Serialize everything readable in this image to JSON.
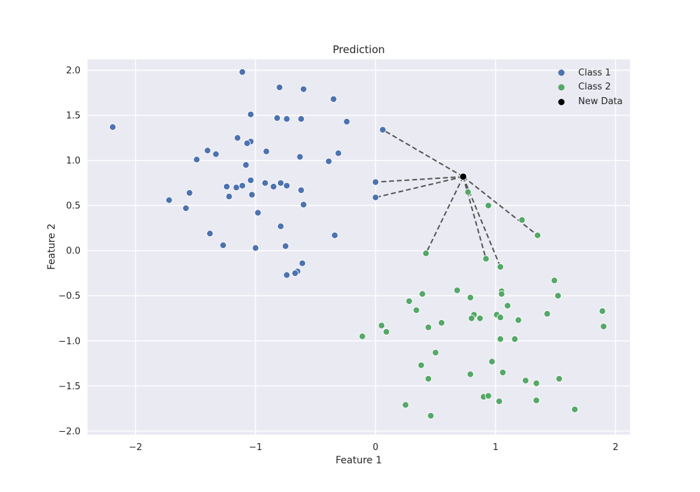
{
  "chart_data": {
    "type": "scatter",
    "title": "Prediction",
    "xlabel": "Feature 1",
    "ylabel": "Feature 2",
    "xlim": [
      -2.4,
      2.12
    ],
    "ylim": [
      -2.04,
      2.12
    ],
    "xticks": [
      -2,
      -1,
      0,
      1,
      2
    ],
    "xtick_labels": [
      "−2",
      "−1",
      "0",
      "1",
      "2"
    ],
    "yticks": [
      -2.0,
      -1.5,
      -1.0,
      -0.5,
      0.0,
      0.5,
      1.0,
      1.5,
      2.0
    ],
    "ytick_labels": [
      "−2.0",
      "−1.5",
      "−1.0",
      "−0.5",
      "0.0",
      "0.5",
      "1.0",
      "1.5",
      "2.0"
    ],
    "grid": true,
    "legend_position": "top-right",
    "colors": {
      "background": "#eaeaf2",
      "grid": "#ffffff",
      "class1": "#4c72b0",
      "class2": "#55a868",
      "new_data": "#000000",
      "neighbor_line": "#555555"
    },
    "series": [
      {
        "name": "Class 1",
        "color": "#4c72b0",
        "points": [
          [
            -1.11,
            1.98
          ],
          [
            -0.8,
            1.81
          ],
          [
            -0.6,
            1.79
          ],
          [
            -0.35,
            1.68
          ],
          [
            -1.04,
            1.51
          ],
          [
            -0.82,
            1.47
          ],
          [
            -0.74,
            1.46
          ],
          [
            -0.62,
            1.46
          ],
          [
            -0.24,
            1.43
          ],
          [
            -2.19,
            1.37
          ],
          [
            -1.15,
            1.25
          ],
          [
            -1.04,
            1.21
          ],
          [
            -1.07,
            1.19
          ],
          [
            -1.4,
            1.11
          ],
          [
            -0.91,
            1.1
          ],
          [
            -1.33,
            1.07
          ],
          [
            -0.31,
            1.08
          ],
          [
            -0.63,
            1.04
          ],
          [
            -1.49,
            1.01
          ],
          [
            -0.39,
            0.99
          ],
          [
            -1.08,
            0.95
          ],
          [
            -1.04,
            0.78
          ],
          [
            -0.92,
            0.75
          ],
          [
            -0.79,
            0.75
          ],
          [
            -0.74,
            0.72
          ],
          [
            -0.85,
            0.71
          ],
          [
            -1.11,
            0.72
          ],
          [
            -1.24,
            0.71
          ],
          [
            -1.16,
            0.7
          ],
          [
            -0.62,
            0.67
          ],
          [
            -1.55,
            0.64
          ],
          [
            -1.03,
            0.62
          ],
          [
            -1.22,
            0.6
          ],
          [
            -1.72,
            0.56
          ],
          [
            -0.6,
            0.51
          ],
          [
            -1.58,
            0.47
          ],
          [
            -0.98,
            0.42
          ],
          [
            -0.79,
            0.27
          ],
          [
            -1.38,
            0.19
          ],
          [
            -0.34,
            0.17
          ],
          [
            -1.27,
            0.06
          ],
          [
            -0.75,
            0.05
          ],
          [
            -1.0,
            0.03
          ],
          [
            -0.61,
            -0.14
          ],
          [
            -0.65,
            -0.23
          ],
          [
            -0.67,
            -0.25
          ],
          [
            -0.74,
            -0.27
          ],
          [
            0.06,
            1.34
          ],
          [
            0.0,
            0.76
          ],
          [
            0.0,
            0.59
          ]
        ]
      },
      {
        "name": "Class 2",
        "color": "#55a868",
        "points": [
          [
            0.77,
            0.65
          ],
          [
            0.94,
            0.5
          ],
          [
            1.22,
            0.34
          ],
          [
            1.35,
            0.17
          ],
          [
            0.42,
            -0.03
          ],
          [
            0.92,
            -0.09
          ],
          [
            1.04,
            -0.18
          ],
          [
            1.49,
            -0.33
          ],
          [
            1.05,
            -0.45
          ],
          [
            0.68,
            -0.44
          ],
          [
            0.39,
            -0.48
          ],
          [
            1.05,
            -0.48
          ],
          [
            1.52,
            -0.5
          ],
          [
            0.79,
            -0.52
          ],
          [
            0.28,
            -0.56
          ],
          [
            1.1,
            -0.61
          ],
          [
            0.34,
            -0.66
          ],
          [
            1.89,
            -0.67
          ],
          [
            1.43,
            -0.7
          ],
          [
            0.82,
            -0.71
          ],
          [
            1.01,
            -0.71
          ],
          [
            0.8,
            -0.75
          ],
          [
            0.87,
            -0.75
          ],
          [
            1.04,
            -0.74
          ],
          [
            1.19,
            -0.77
          ],
          [
            0.55,
            -0.8
          ],
          [
            0.05,
            -0.83
          ],
          [
            0.44,
            -0.85
          ],
          [
            1.9,
            -0.84
          ],
          [
            0.09,
            -0.9
          ],
          [
            -0.11,
            -0.95
          ],
          [
            1.04,
            -0.98
          ],
          [
            1.16,
            -0.98
          ],
          [
            0.5,
            -1.13
          ],
          [
            0.97,
            -1.23
          ],
          [
            0.38,
            -1.27
          ],
          [
            1.06,
            -1.35
          ],
          [
            0.79,
            -1.37
          ],
          [
            0.44,
            -1.42
          ],
          [
            1.53,
            -1.42
          ],
          [
            1.25,
            -1.44
          ],
          [
            1.34,
            -1.47
          ],
          [
            0.25,
            -1.71
          ],
          [
            0.9,
            -1.62
          ],
          [
            0.94,
            -1.61
          ],
          [
            1.03,
            -1.67
          ],
          [
            1.34,
            -1.66
          ],
          [
            1.66,
            -1.76
          ],
          [
            0.46,
            -1.83
          ]
        ]
      },
      {
        "name": "New Data",
        "color": "#000000",
        "points": [
          [
            0.73,
            0.82
          ]
        ]
      }
    ],
    "neighbor_lines": [
      [
        [
          0.73,
          0.82
        ],
        [
          0.06,
          1.34
        ]
      ],
      [
        [
          0.73,
          0.82
        ],
        [
          0.0,
          0.76
        ]
      ],
      [
        [
          0.73,
          0.82
        ],
        [
          0.0,
          0.59
        ]
      ],
      [
        [
          0.73,
          0.82
        ],
        [
          0.42,
          -0.03
        ]
      ],
      [
        [
          0.73,
          0.82
        ],
        [
          0.92,
          -0.09
        ]
      ],
      [
        [
          0.73,
          0.82
        ],
        [
          1.04,
          -0.18
        ]
      ],
      [
        [
          0.73,
          0.82
        ],
        [
          1.35,
          0.17
        ]
      ]
    ]
  }
}
